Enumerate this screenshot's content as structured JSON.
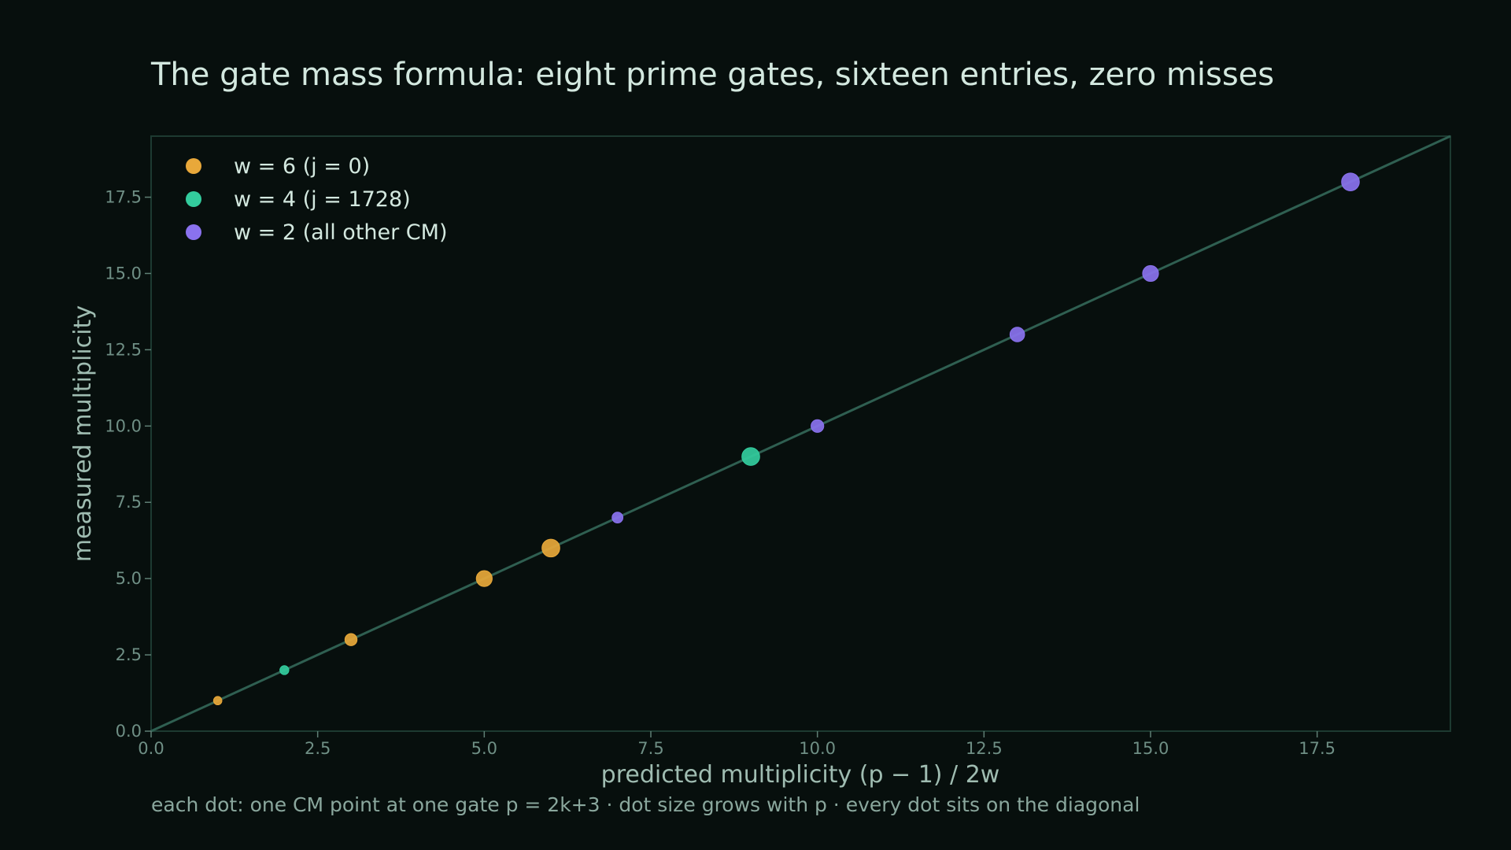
{
  "chart_data": {
    "type": "scatter",
    "title": "The gate mass formula: eight prime gates, sixteen entries, zero misses",
    "xlabel": "predicted multiplicity  (p − 1) / 2w",
    "ylabel": "measured multiplicity",
    "caption": "each dot: one CM point at one gate p = 2k+3 · dot size grows with p · every dot sits on the diagonal",
    "xlim": [
      0,
      19.5
    ],
    "ylim": [
      0,
      19.5
    ],
    "xticks": [
      "0.0",
      "2.5",
      "5.0",
      "7.5",
      "10.0",
      "12.5",
      "15.0",
      "17.5"
    ],
    "yticks": [
      "0.0",
      "2.5",
      "5.0",
      "7.5",
      "10.0",
      "12.5",
      "15.0",
      "17.5"
    ],
    "grid": false,
    "legend_position": "top-left",
    "diagonal_color": "#2f5f51",
    "series": [
      {
        "name": "w = 6  (j = 0)",
        "color": "#e8a83a",
        "points": [
          {
            "x": 1,
            "y": 1,
            "p": 13
          },
          {
            "x": 3,
            "y": 3,
            "p": 37
          },
          {
            "x": 5,
            "y": 5,
            "p": 61
          },
          {
            "x": 6,
            "y": 6,
            "p": 73
          }
        ]
      },
      {
        "name": "w = 4  (j = 1728)",
        "color": "#33cc9d",
        "points": [
          {
            "x": 2,
            "y": 2,
            "p": 17
          },
          {
            "x": 9,
            "y": 9,
            "p": 73
          }
        ]
      },
      {
        "name": "w = 2  (all other CM)",
        "color": "#8a72ee",
        "points": [
          {
            "x": 7,
            "y": 7,
            "p": 29
          },
          {
            "x": 10,
            "y": 10,
            "p": 41
          },
          {
            "x": 13,
            "y": 13,
            "p": 53
          },
          {
            "x": 15,
            "y": 15,
            "p": 61
          },
          {
            "x": 18,
            "y": 18,
            "p": 73
          }
        ]
      }
    ]
  }
}
